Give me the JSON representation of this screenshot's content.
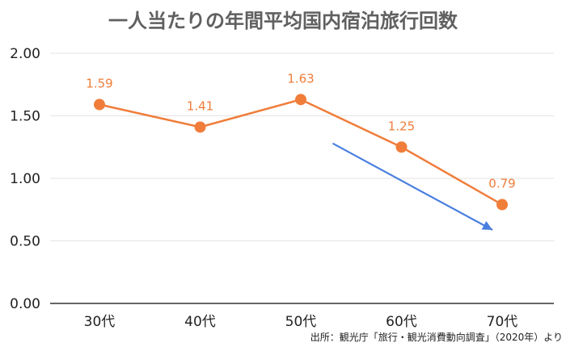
{
  "chart_data": {
    "type": "line",
    "title": "一人当たりの年間平均国内宿泊旅行回数",
    "categories": [
      "30代",
      "40代",
      "50代",
      "60代",
      "70代"
    ],
    "series": [
      {
        "values": [
          1.59,
          1.41,
          1.63,
          1.25,
          0.79
        ]
      }
    ],
    "data_labels": [
      "1.59",
      "1.41",
      "1.63",
      "1.25",
      "0.79"
    ],
    "y_ticks": [
      "0.00",
      "0.50",
      "1.00",
      "1.50",
      "2.00"
    ],
    "ylim": [
      0,
      2
    ],
    "grid": true,
    "legend": "none",
    "annotation": {
      "type": "trend-arrow",
      "from_x": 3,
      "from_y": 1.26,
      "to_x": 4,
      "to_y": 0.62
    },
    "source": "出所：観光庁「旅行・観光消費動向調査」（2020年）より",
    "colors": {
      "series": "#F07D3A",
      "arrow": "#4A7FE0",
      "grid": "#e3e3e3",
      "title": "#606060"
    }
  }
}
